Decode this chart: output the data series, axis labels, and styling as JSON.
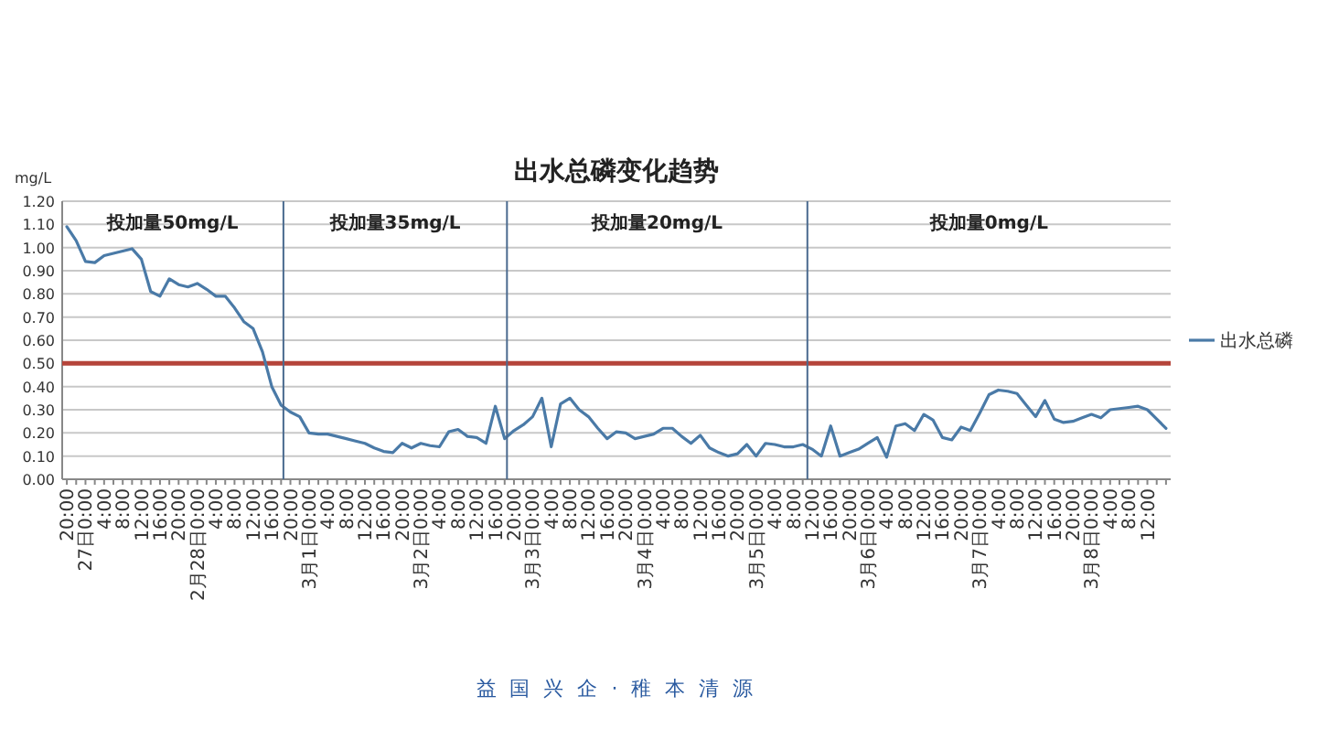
{
  "chart_data": {
    "type": "line",
    "title": "出水总磷变化趋势",
    "ylabel": "mg/L",
    "annotations": [
      "投加量50mg/L",
      "投加量35mg/L",
      "投加量20mg/L",
      "投加量0mg/L",
      "益 国 兴 企 · 稚 本 清 源"
    ],
    "categories": [
      "20:00",
      null,
      "27日0:00",
      null,
      "4:00",
      null,
      "8:00",
      null,
      "12:00",
      null,
      "16:00",
      null,
      "20:00",
      null,
      "2月28日0:00",
      null,
      "4:00",
      null,
      "8:00",
      null,
      "12:00",
      null,
      "16:00",
      null,
      "20:00",
      null,
      "3月1日0:00",
      null,
      "4:00",
      null,
      "8:00",
      null,
      "12:00",
      null,
      "16:00",
      null,
      "20:00",
      null,
      "3月2日0:00",
      null,
      "4:00",
      null,
      "8:00",
      null,
      "12:00",
      null,
      "16:00",
      null,
      "20:00",
      null,
      "3月3日0:00",
      null,
      "4:00",
      null,
      "8:00",
      null,
      "12:00",
      null,
      "16:00",
      null,
      "20:00",
      null,
      "3月4日0:00",
      null,
      "4:00",
      null,
      "8:00",
      null,
      "12:00",
      null,
      "16:00",
      null,
      "20:00",
      null,
      "3月5日0:00",
      null,
      "4:00",
      null,
      "8:00",
      null,
      "12:00",
      null,
      "16:00",
      null,
      "20:00",
      null,
      "3月6日0:00",
      null,
      "4:00",
      null,
      "8:00",
      null,
      "12:00",
      null,
      "16:00",
      null,
      "20:00",
      null,
      "3月7日0:00",
      null,
      "4:00",
      null,
      "8:00",
      null,
      "12:00",
      null,
      "16:00",
      null,
      "20:00",
      null,
      "3月8日0:00",
      null,
      "4:00",
      null,
      "8:00",
      null,
      "12:00",
      null,
      null
    ],
    "series": [
      {
        "name": "出水总磷",
        "color": "#4a7aa7",
        "values": [
          1.09,
          1.03,
          0.94,
          0.935,
          0.965,
          0.975,
          0.985,
          0.995,
          0.95,
          0.81,
          0.79,
          0.865,
          0.84,
          0.83,
          0.845,
          0.82,
          0.79,
          0.79,
          0.74,
          0.68,
          0.65,
          0.55,
          0.4,
          0.32,
          0.29,
          0.27,
          0.2,
          0.195,
          0.195,
          0.185,
          0.175,
          0.165,
          0.155,
          0.135,
          0.12,
          0.115,
          0.155,
          0.135,
          0.155,
          0.145,
          0.14,
          0.205,
          0.215,
          0.185,
          0.18,
          0.155,
          0.315,
          0.175,
          0.21,
          0.235,
          0.27,
          0.35,
          0.14,
          0.325,
          0.35,
          0.3,
          0.27,
          0.22,
          0.175,
          0.205,
          0.2,
          0.175,
          0.185,
          0.195,
          0.22,
          0.22,
          0.185,
          0.155,
          0.19,
          0.135,
          0.115,
          0.1,
          0.11,
          0.15,
          0.1,
          0.155,
          0.15,
          0.14,
          0.14,
          0.15,
          0.13,
          0.1,
          0.23,
          0.1,
          0.115,
          0.13,
          0.155,
          0.18,
          0.095,
          0.23,
          0.24,
          0.21,
          0.28,
          0.255,
          0.18,
          0.17,
          0.225,
          0.21,
          0.285,
          0.365,
          0.385,
          0.38,
          0.37,
          0.32,
          0.27,
          0.34,
          0.26,
          0.245,
          0.25,
          0.265,
          0.28,
          0.265,
          0.3,
          0.305,
          0.31,
          0.315,
          0.3,
          0.26,
          0.22
        ]
      }
    ],
    "ylim": [
      0,
      1.2
    ],
    "yticks": [
      {
        "value": 0,
        "label": "0.00"
      },
      {
        "value": 0.1,
        "label": "0.10"
      },
      {
        "value": 0.2,
        "label": "0.20"
      },
      {
        "value": 0.3,
        "label": "0.30"
      },
      {
        "value": 0.4,
        "label": "0.40"
      },
      {
        "value": 0.5,
        "label": "0.50"
      },
      {
        "value": 0.6,
        "label": "0.60"
      },
      {
        "value": 0.7,
        "label": "0.70"
      },
      {
        "value": 0.8,
        "label": "0.80"
      },
      {
        "value": 0.9,
        "label": "0.90"
      },
      {
        "value": 1.0,
        "label": "1.00"
      },
      {
        "value": 1.1,
        "label": "1.10"
      },
      {
        "value": 1.2,
        "label": "1.20"
      }
    ],
    "ref_lines": [
      {
        "axis": "y",
        "value": 0.5,
        "color": "#b5443a"
      }
    ],
    "grid": "y",
    "legend": "right"
  }
}
